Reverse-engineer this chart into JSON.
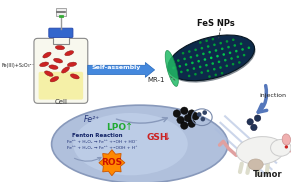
{
  "self_assembly_label": "Self-assembly",
  "injection_label": "injection",
  "cell_label": "Cell",
  "fe_label": "Fe²⁺",
  "lpo_label": "LPO",
  "gsh_label": "GSH",
  "ros_label": "ROS",
  "fenton_label": "Fenton Reaction",
  "fenton_eq1": "Fe²⁺ + H₂O₂ → Fe³⁺ +•OH + HO⁻",
  "fenton_eq2": "Fe³⁺ + H₂O₂ → Fe²⁺ +•OOH + H⁺",
  "fe_label2": "Fe(III)+S₂O₃²⁻",
  "tumor_label": "Tumor",
  "fes_nps_label": "FeS NPs",
  "mr1_label": "MR-1"
}
